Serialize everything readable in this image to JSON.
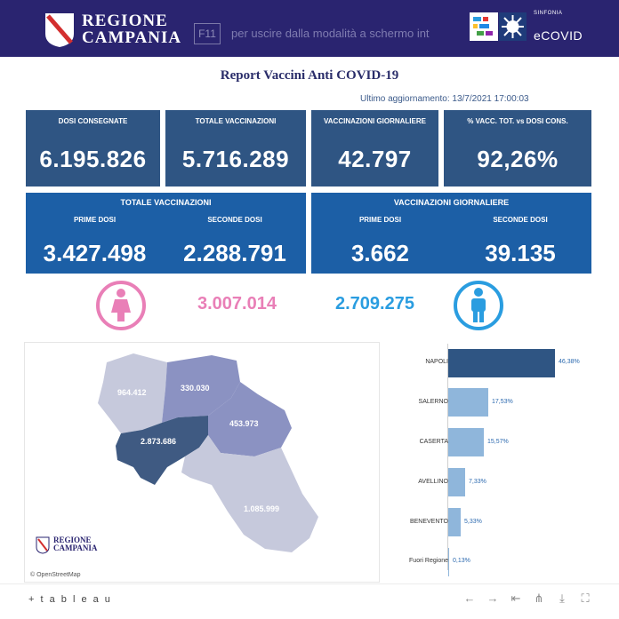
{
  "header": {
    "brand_line1": "REGIONE",
    "brand_line2": "CAMPANIA",
    "fullscreen_key": "F11",
    "fullscreen_msg": "per uscire dalla modalità a schermo int",
    "sinfonia": "SINFONIA",
    "ecovid": "eCOVID",
    "bg_color": "#2a2470"
  },
  "report": {
    "title": "Report Vaccini Anti COVID-19",
    "updated": "Ultimo aggiornamento: 13/7/2021 17:00:03"
  },
  "kpis": [
    {
      "label": "DOSI  CONSEGNATE",
      "value": "6.195.826"
    },
    {
      "label": "TOTALE VACCINAZIONI",
      "value": "5.716.289"
    },
    {
      "label": "VACCINAZIONI GIORNALIERE",
      "value": "42.797"
    },
    {
      "label": "% VACC. TOT. vs DOSI CONS.",
      "value": "92,26%"
    }
  ],
  "totals": {
    "title": "TOTALE VACCINAZIONI",
    "first_label": "PRIME DOSI",
    "first_value": "3.427.498",
    "second_label": "SECONDE DOSI",
    "second_value": "2.288.791"
  },
  "daily": {
    "title": "VACCINAZIONI GIORNALIERE",
    "first_label": "PRIME DOSI",
    "first_value": "3.662",
    "second_label": "SECONDE DOSI",
    "second_value": "39.135"
  },
  "gender": {
    "female_value": "3.007.014",
    "male_value": "2.709.275",
    "female_color": "#e97fb7",
    "male_color": "#2a9de0"
  },
  "map": {
    "values": {
      "caserta": "964.412",
      "benevento": "330.030",
      "avellino": "453.973",
      "napoli": "2.873.686",
      "salerno": "1.085.999"
    },
    "logo_line1": "REGIONE",
    "logo_line2": "CAMPANIA",
    "attribution": "© OpenStreetMap"
  },
  "bars": [
    {
      "label": "NAPOLI",
      "pct": "46,38%",
      "value": 46.38
    },
    {
      "label": "SALERNO",
      "pct": "17,53%",
      "value": 17.53
    },
    {
      "label": "CASERTA",
      "pct": "15,57%",
      "value": 15.57
    },
    {
      "label": "AVELLINO",
      "pct": "7,33%",
      "value": 7.33
    },
    {
      "label": "BENEVENTO",
      "pct": "5,33%",
      "value": 5.33
    },
    {
      "label": "Fuori Regione",
      "pct": "0,13%",
      "value": 0.13
    }
  ],
  "footer": {
    "tableau": "+ t a b l e a u",
    "icons": [
      "undo-icon",
      "redo-icon",
      "revert-icon",
      "share-icon",
      "download-icon",
      "fullscreen-icon"
    ]
  }
}
